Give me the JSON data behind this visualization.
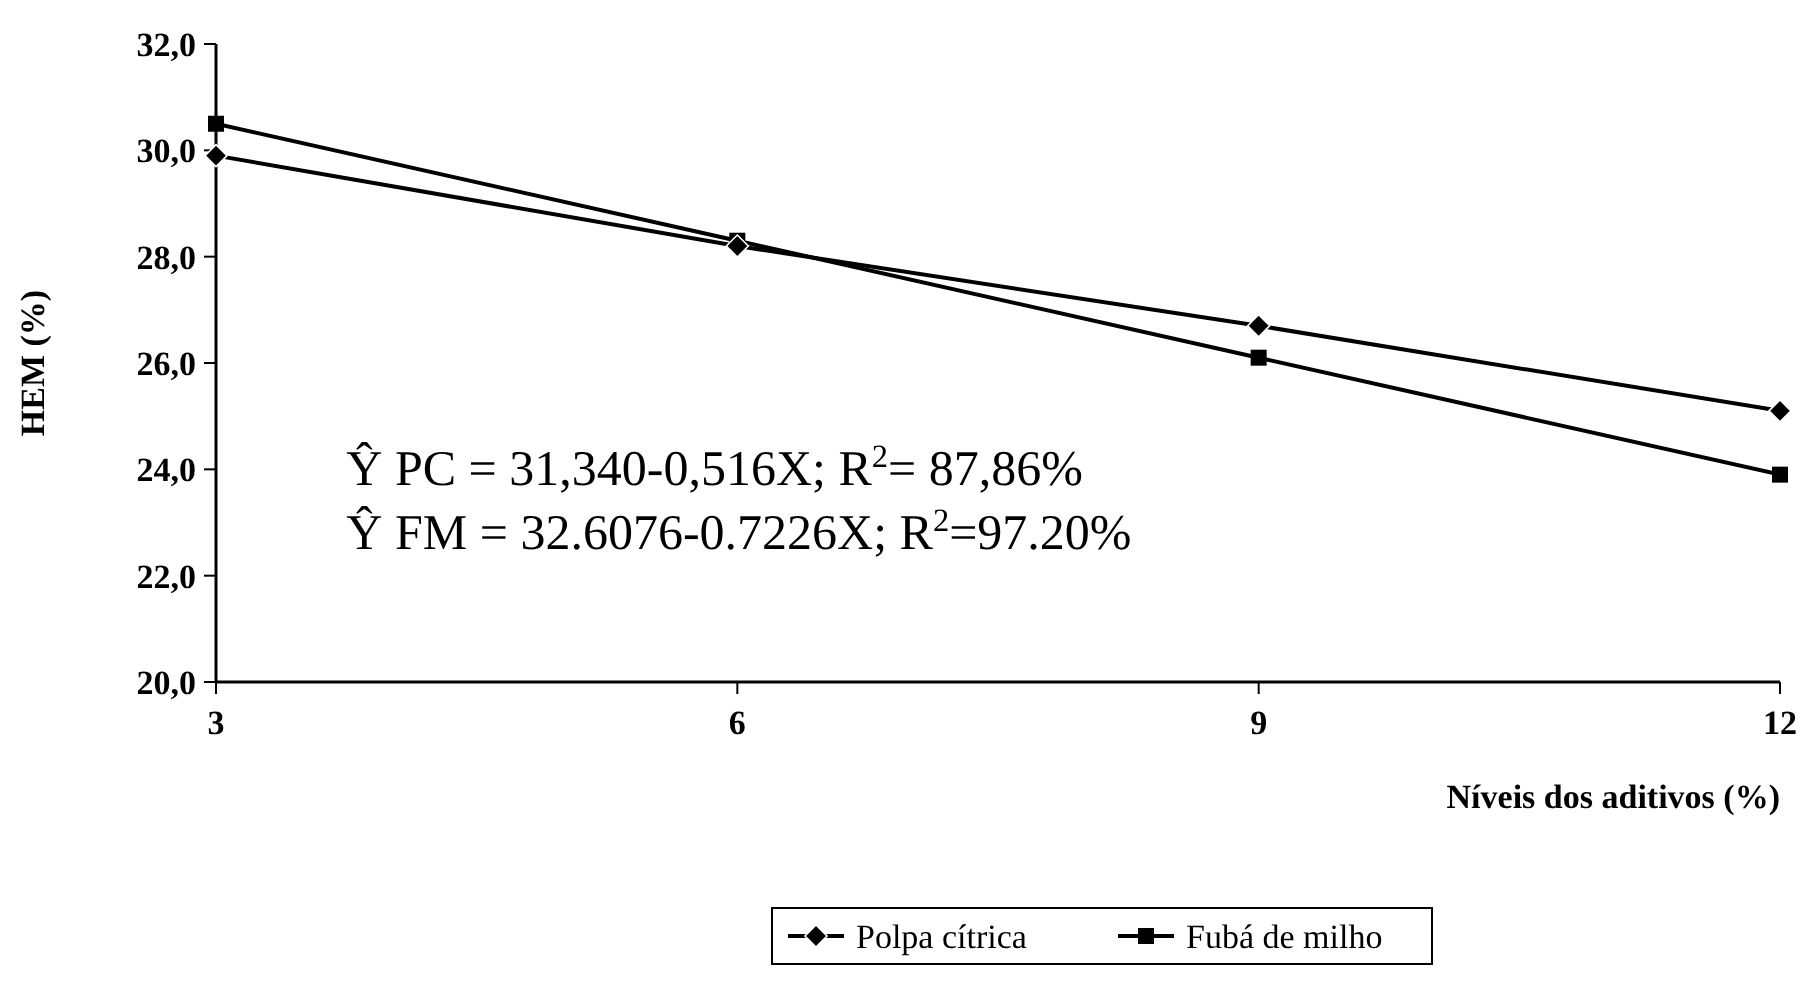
{
  "chart_data": {
    "type": "line",
    "xlabel": "Níveis dos aditivos (%)",
    "ylabel": "HEM (%)",
    "x": [
      3,
      6,
      9,
      12
    ],
    "xlim": [
      3,
      12
    ],
    "xticks": [
      3,
      6,
      9,
      12
    ],
    "ylim": [
      20,
      32
    ],
    "yticks": [
      {
        "value": 20,
        "label": "20,0"
      },
      {
        "value": 22,
        "label": "22,0"
      },
      {
        "value": 24,
        "label": "24,0"
      },
      {
        "value": 26,
        "label": "26,0"
      },
      {
        "value": 28,
        "label": "28,0"
      },
      {
        "value": 30,
        "label": "30,0"
      },
      {
        "value": 32,
        "label": "32,0"
      }
    ],
    "series": [
      {
        "name": "Polpa cítrica",
        "color": "#000000",
        "marker": "diamond",
        "values": [
          29.9,
          28.2,
          26.7,
          25.1
        ]
      },
      {
        "name": "Fubá de milho",
        "color": "#000000",
        "marker": "square",
        "values": [
          30.5,
          28.3,
          26.1,
          23.9
        ]
      }
    ],
    "annotations": [
      "Ŷ PC = 31,340-0,516X;  R$^{2}$= 87,86%",
      "Ŷ FM = 32.6076-0.7226X;  R$^{2}$=97.20%"
    ],
    "legend": "bottom",
    "grid": false,
    "line_style": "solid"
  }
}
